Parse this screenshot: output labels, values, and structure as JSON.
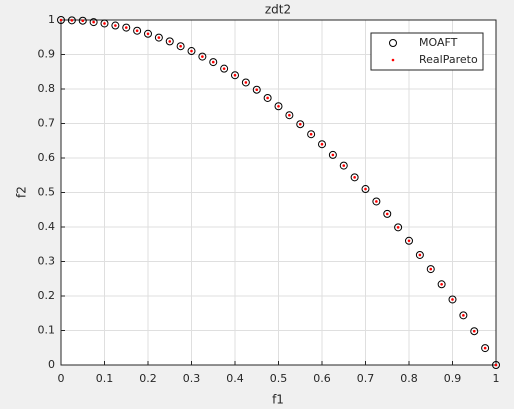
{
  "chart_data": {
    "type": "scatter",
    "title": "zdt2",
    "xlabel": "f1",
    "ylabel": "f2",
    "xlim": [
      0,
      1
    ],
    "ylim": [
      0,
      1
    ],
    "xticks": [
      0,
      0.1,
      0.2,
      0.3,
      0.4,
      0.5,
      0.6,
      0.7,
      0.8,
      0.9,
      1
    ],
    "yticks": [
      0,
      0.1,
      0.2,
      0.3,
      0.4,
      0.5,
      0.6,
      0.7,
      0.8,
      0.9,
      1
    ],
    "grid": true,
    "legend": "northeast",
    "series": [
      {
        "name": "MOAFT",
        "color": "#000000",
        "marker": "circle",
        "x": [
          0,
          0.025,
          0.05,
          0.075,
          0.1,
          0.125,
          0.15,
          0.175,
          0.2,
          0.225,
          0.25,
          0.275,
          0.3,
          0.325,
          0.35,
          0.375,
          0.4,
          0.425,
          0.45,
          0.475,
          0.5,
          0.525,
          0.55,
          0.575,
          0.6,
          0.625,
          0.65,
          0.675,
          0.7,
          0.725,
          0.75,
          0.775,
          0.8,
          0.825,
          0.85,
          0.875,
          0.9,
          0.925,
          0.95,
          0.975,
          1
        ],
        "values": [
          1,
          0.999,
          0.998,
          0.994,
          0.99,
          0.984,
          0.978,
          0.969,
          0.96,
          0.949,
          0.938,
          0.924,
          0.91,
          0.894,
          0.878,
          0.859,
          0.84,
          0.819,
          0.798,
          0.774,
          0.75,
          0.724,
          0.698,
          0.669,
          0.64,
          0.609,
          0.578,
          0.544,
          0.51,
          0.474,
          0.438,
          0.399,
          0.36,
          0.319,
          0.278,
          0.234,
          0.19,
          0.144,
          0.098,
          0.049,
          0
        ]
      },
      {
        "name": "RealPareto",
        "color": "#ff0000",
        "marker": "dot",
        "x": [
          0,
          0.025,
          0.05,
          0.075,
          0.1,
          0.125,
          0.15,
          0.175,
          0.2,
          0.225,
          0.25,
          0.275,
          0.3,
          0.325,
          0.35,
          0.375,
          0.4,
          0.425,
          0.45,
          0.475,
          0.5,
          0.525,
          0.55,
          0.575,
          0.6,
          0.625,
          0.65,
          0.675,
          0.7,
          0.725,
          0.75,
          0.775,
          0.8,
          0.825,
          0.85,
          0.875,
          0.9,
          0.925,
          0.95,
          0.975,
          1
        ],
        "values": [
          1,
          0.999,
          0.998,
          0.994,
          0.99,
          0.984,
          0.978,
          0.969,
          0.96,
          0.949,
          0.938,
          0.924,
          0.91,
          0.894,
          0.878,
          0.859,
          0.84,
          0.819,
          0.798,
          0.774,
          0.75,
          0.724,
          0.698,
          0.669,
          0.64,
          0.609,
          0.578,
          0.544,
          0.51,
          0.474,
          0.438,
          0.399,
          0.36,
          0.319,
          0.278,
          0.234,
          0.19,
          0.144,
          0.098,
          0.049,
          0
        ]
      }
    ]
  }
}
